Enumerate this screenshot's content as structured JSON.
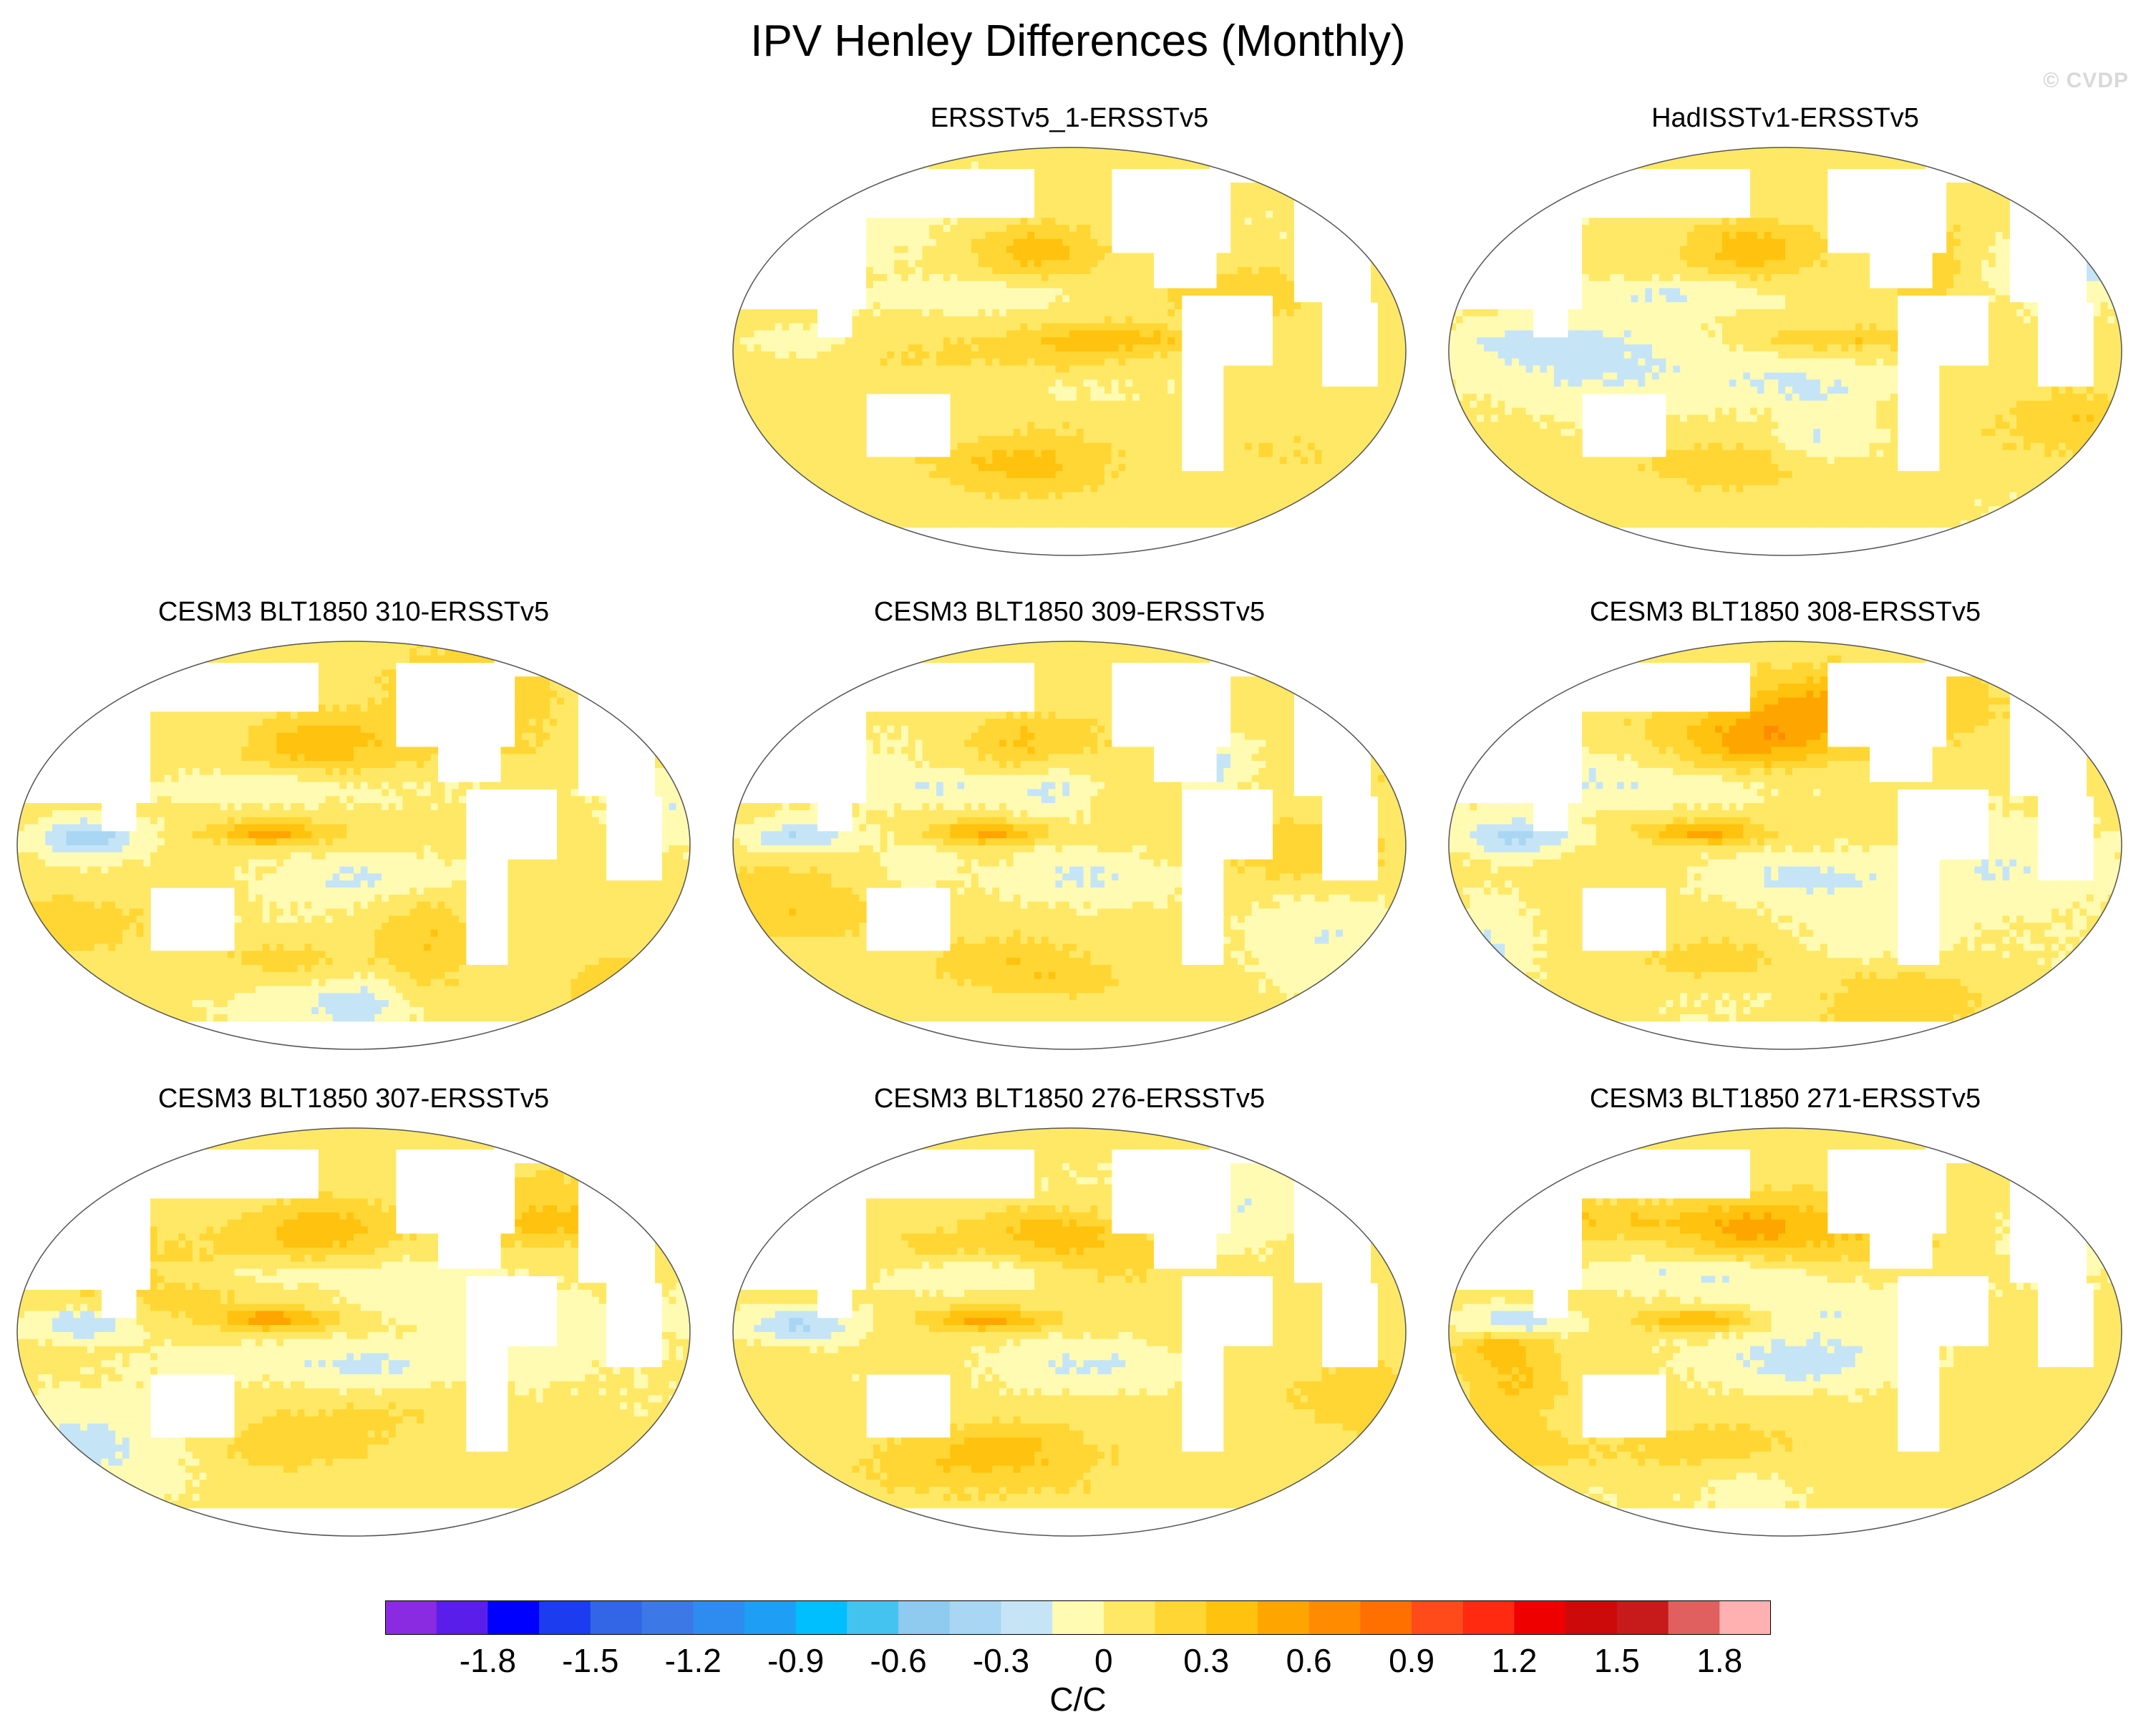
{
  "title": "IPV Henley Differences (Monthly)",
  "watermark": "© CVDP",
  "panels": [
    {
      "id": "p1",
      "title": "ERSSTv5_1-ERSSTv5",
      "row": 0,
      "col": 1,
      "seed": 11
    },
    {
      "id": "p2",
      "title": "HadISSTv1-ERSSTv5",
      "row": 0,
      "col": 2,
      "seed": 23
    },
    {
      "id": "p3",
      "title": "CESM3 BLT1850 310-ERSSTv5",
      "row": 1,
      "col": 0,
      "seed": 37
    },
    {
      "id": "p4",
      "title": "CESM3 BLT1850 309-ERSSTv5",
      "row": 1,
      "col": 1,
      "seed": 41
    },
    {
      "id": "p5",
      "title": "CESM3 BLT1850 308-ERSSTv5",
      "row": 1,
      "col": 2,
      "seed": 53
    },
    {
      "id": "p6",
      "title": "CESM3 BLT1850 307-ERSSTv5",
      "row": 2,
      "col": 0,
      "seed": 67
    },
    {
      "id": "p7",
      "title": "CESM3 BLT1850 276-ERSSTv5",
      "row": 2,
      "col": 1,
      "seed": 71
    },
    {
      "id": "p8",
      "title": "CESM3 BLT1850 271-ERSSTv5",
      "row": 2,
      "col": 2,
      "seed": 89
    }
  ],
  "colorbar": {
    "units": "C/C",
    "colors": [
      "#8a2be2",
      "#5a1eea",
      "#0000ff",
      "#1c3cf0",
      "#3366e6",
      "#3c78e6",
      "#2e8cf0",
      "#1e9ef5",
      "#00bfff",
      "#45c3f0",
      "#8ecbef",
      "#a9d6f2",
      "#c5e5f7",
      "#fffbb3",
      "#ffe866",
      "#ffd633",
      "#ffc20e",
      "#ffa500",
      "#ff8c00",
      "#ff7000",
      "#ff4a1a",
      "#ff2a10",
      "#ee0000",
      "#cc0a0a",
      "#c71a1a",
      "#e06060",
      "#ffb0b0"
    ],
    "labels": [
      "-1.8",
      "-1.5",
      "-1.2",
      "-0.9",
      "-0.6",
      "-0.3",
      "0",
      "0.3",
      "0.6",
      "0.9",
      "1.2",
      "1.5",
      "1.8"
    ],
    "min": -2.1,
    "step": 0.15
  }
}
